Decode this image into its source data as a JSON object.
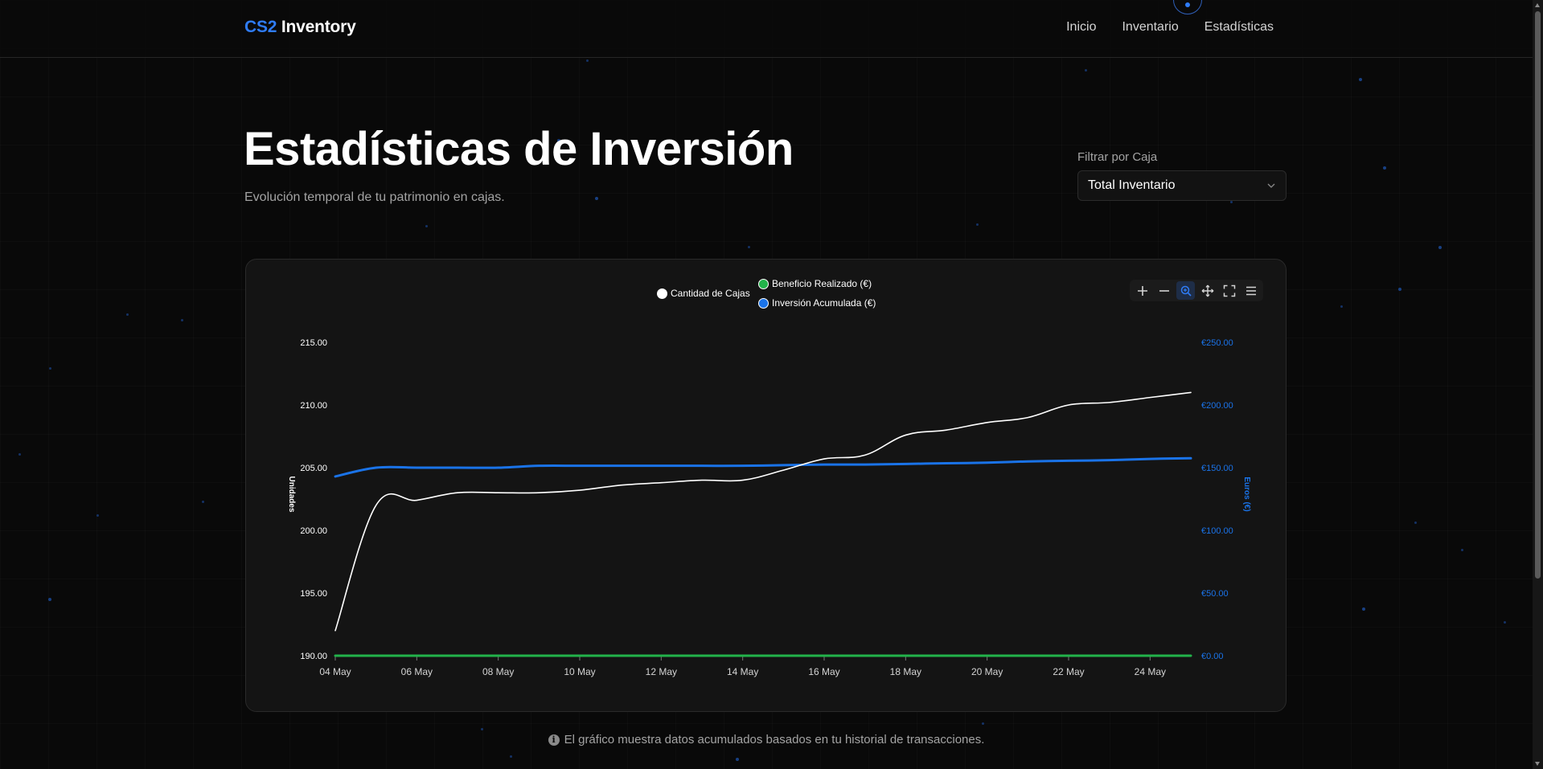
{
  "navbar": {
    "brand_accent": "CS2",
    "brand_rest": "Inventory",
    "links": [
      "Inicio",
      "Inventario",
      "Estadísticas"
    ]
  },
  "header": {
    "title": "Estadísticas de Inversión",
    "subtitle": "Evolución temporal de tu patrimonio en cajas."
  },
  "filter": {
    "label": "Filtrar por Caja",
    "selected": "Total Inventario"
  },
  "chart_toolbar": {
    "icons": [
      "zoom-in-icon",
      "zoom-out-icon",
      "selection-zoom-icon",
      "pan-icon",
      "reset-zoom-icon",
      "menu-icon"
    ],
    "active": "selection-zoom-icon"
  },
  "chart_data": {
    "type": "line",
    "x": [
      "04 May",
      "05 May",
      "06 May",
      "07 May",
      "08 May",
      "09 May",
      "10 May",
      "11 May",
      "12 May",
      "13 May",
      "14 May",
      "15 May",
      "16 May",
      "17 May",
      "18 May",
      "19 May",
      "20 May",
      "21 May",
      "22 May",
      "23 May",
      "24 May",
      "25 May"
    ],
    "x_tick_labels": [
      "04 May",
      "06 May",
      "08 May",
      "10 May",
      "12 May",
      "14 May",
      "16 May",
      "18 May",
      "20 May",
      "22 May",
      "24 May"
    ],
    "series": [
      {
        "name": "Cantidad de Cajas",
        "axis": "left",
        "color": "#ffffff",
        "values": [
          192,
          202,
          202.4,
          203,
          203,
          203,
          203.2,
          203.6,
          203.8,
          204,
          204,
          204.8,
          205.7,
          206,
          207.6,
          208,
          208.6,
          209,
          210,
          210.2,
          210.6,
          211
        ]
      },
      {
        "name": "Beneficio Realizado (€)",
        "axis": "right",
        "color": "#22b34a",
        "values": [
          0,
          0,
          0,
          0,
          0,
          0,
          0,
          0,
          0,
          0,
          0,
          0,
          0,
          0,
          0,
          0,
          0,
          0,
          0,
          0,
          0,
          0
        ]
      },
      {
        "name": "Inversión Acumulada (€)",
        "axis": "right",
        "color": "#1a73e8",
        "values": [
          143,
          150,
          150,
          150,
          150,
          151.5,
          151.5,
          151.5,
          151.5,
          151.5,
          151.5,
          152,
          152.5,
          152.5,
          153,
          153.5,
          154,
          155,
          155.5,
          156,
          157,
          157.5
        ]
      }
    ],
    "y_left": {
      "label": "Unidades",
      "ylim": [
        190,
        215
      ],
      "ticks": [
        "190.00",
        "195.00",
        "200.00",
        "205.00",
        "210.00",
        "215.00"
      ]
    },
    "y_right": {
      "label": "Euros (€)",
      "ylim": [
        0,
        250
      ],
      "ticks": [
        "€0.00",
        "€50.00",
        "€100.00",
        "€150.00",
        "€200.00",
        "€250.00"
      ]
    },
    "legend_position": "top-center",
    "grid": false
  },
  "footer": {
    "note": "El gráfico muestra datos acumulados basados en tu historial de transacciones."
  },
  "colors": {
    "accent": "#2f7cf6",
    "background": "#090909",
    "card": "#141414",
    "right_axis": "#1a73e8",
    "green": "#22b34a"
  }
}
